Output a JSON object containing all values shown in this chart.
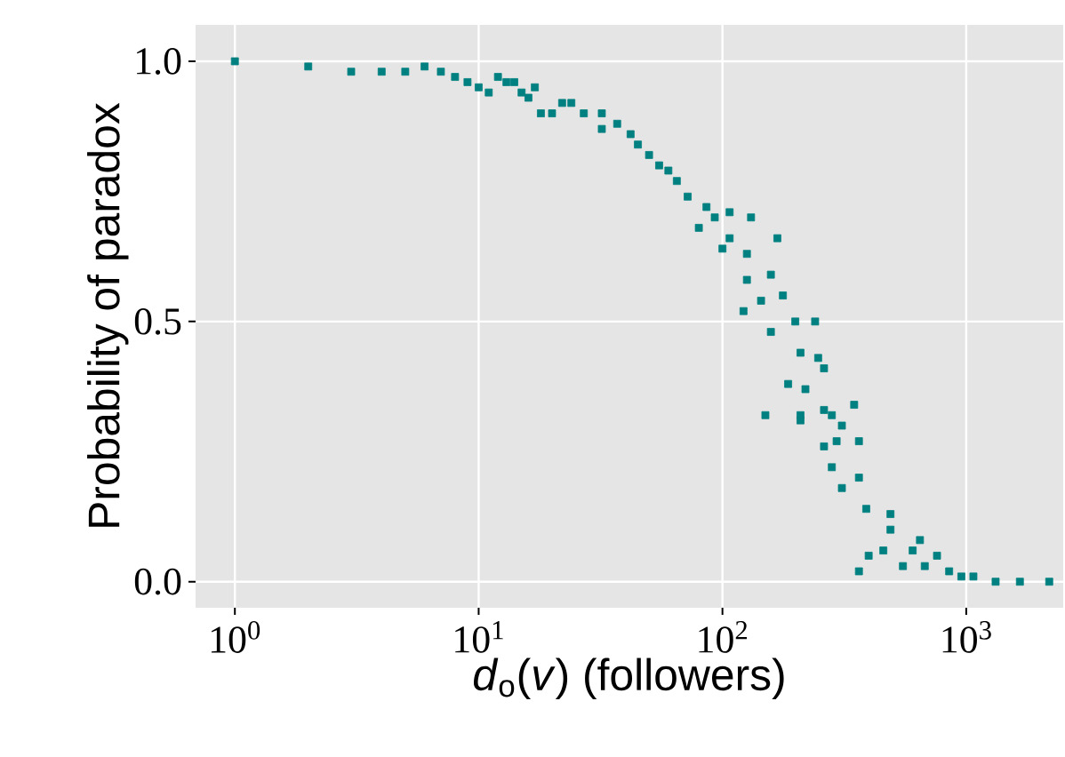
{
  "chart_data": {
    "type": "scatter",
    "xlabel": "*d*$_{o}$(*v*) (followers)",
    "ylabel": "Probability of paradox",
    "log": "x",
    "grid": true,
    "marker": "square",
    "color": "#008080",
    "xlim": [
      0.69,
      2500
    ],
    "ylim": [
      -0.05,
      1.07
    ],
    "xticks": [
      {
        "value": 1,
        "label": "10$^{0}$"
      },
      {
        "value": 10,
        "label": "10$^{1}$"
      },
      {
        "value": 100,
        "label": "10$^{2}$"
      },
      {
        "value": 1000,
        "label": "10$^{3}$"
      }
    ],
    "yticks": [
      {
        "value": 0,
        "label": "0.0"
      },
      {
        "value": 0.5,
        "label": "0.5"
      },
      {
        "value": 1,
        "label": "1.0"
      }
    ],
    "x": [
      1,
      2,
      3,
      4,
      5,
      6,
      7,
      8,
      9,
      10,
      11,
      12,
      13,
      14,
      15,
      16,
      17,
      18,
      20,
      22,
      24,
      27,
      32,
      32,
      37,
      42,
      45,
      50,
      55,
      60,
      65,
      72,
      86,
      93,
      107,
      131,
      80,
      107,
      100,
      126,
      168,
      126,
      158,
      144,
      177,
      122,
      199,
      158,
      240,
      209,
      247,
      186,
      219,
      261,
      150,
      209,
      261,
      309,
      294,
      363,
      347,
      281,
      209,
      261,
      281,
      309,
      363,
      389,
      489,
      363,
      398,
      457,
      603,
      550,
      676,
      851,
      1070,
      1320,
      1660,
      2190,
      489,
      646,
      759,
      955
    ],
    "values": [
      1.0,
      0.99,
      0.98,
      0.98,
      0.98,
      0.99,
      0.98,
      0.97,
      0.96,
      0.95,
      0.94,
      0.97,
      0.96,
      0.96,
      0.94,
      0.93,
      0.95,
      0.9,
      0.9,
      0.92,
      0.92,
      0.9,
      0.9,
      0.87,
      0.88,
      0.86,
      0.84,
      0.82,
      0.8,
      0.79,
      0.77,
      0.74,
      0.72,
      0.7,
      0.71,
      0.7,
      0.68,
      0.66,
      0.64,
      0.63,
      0.66,
      0.58,
      0.59,
      0.54,
      0.55,
      0.52,
      0.5,
      0.48,
      0.5,
      0.44,
      0.43,
      0.38,
      0.37,
      0.41,
      0.32,
      0.32,
      0.33,
      0.3,
      0.27,
      0.27,
      0.34,
      0.32,
      0.31,
      0.26,
      0.22,
      0.18,
      0.2,
      0.14,
      0.1,
      0.02,
      0.05,
      0.06,
      0.06,
      0.03,
      0.03,
      0.02,
      0.01,
      0.0,
      0.0,
      0.0,
      0.13,
      0.08,
      0.05,
      0.01
    ]
  }
}
